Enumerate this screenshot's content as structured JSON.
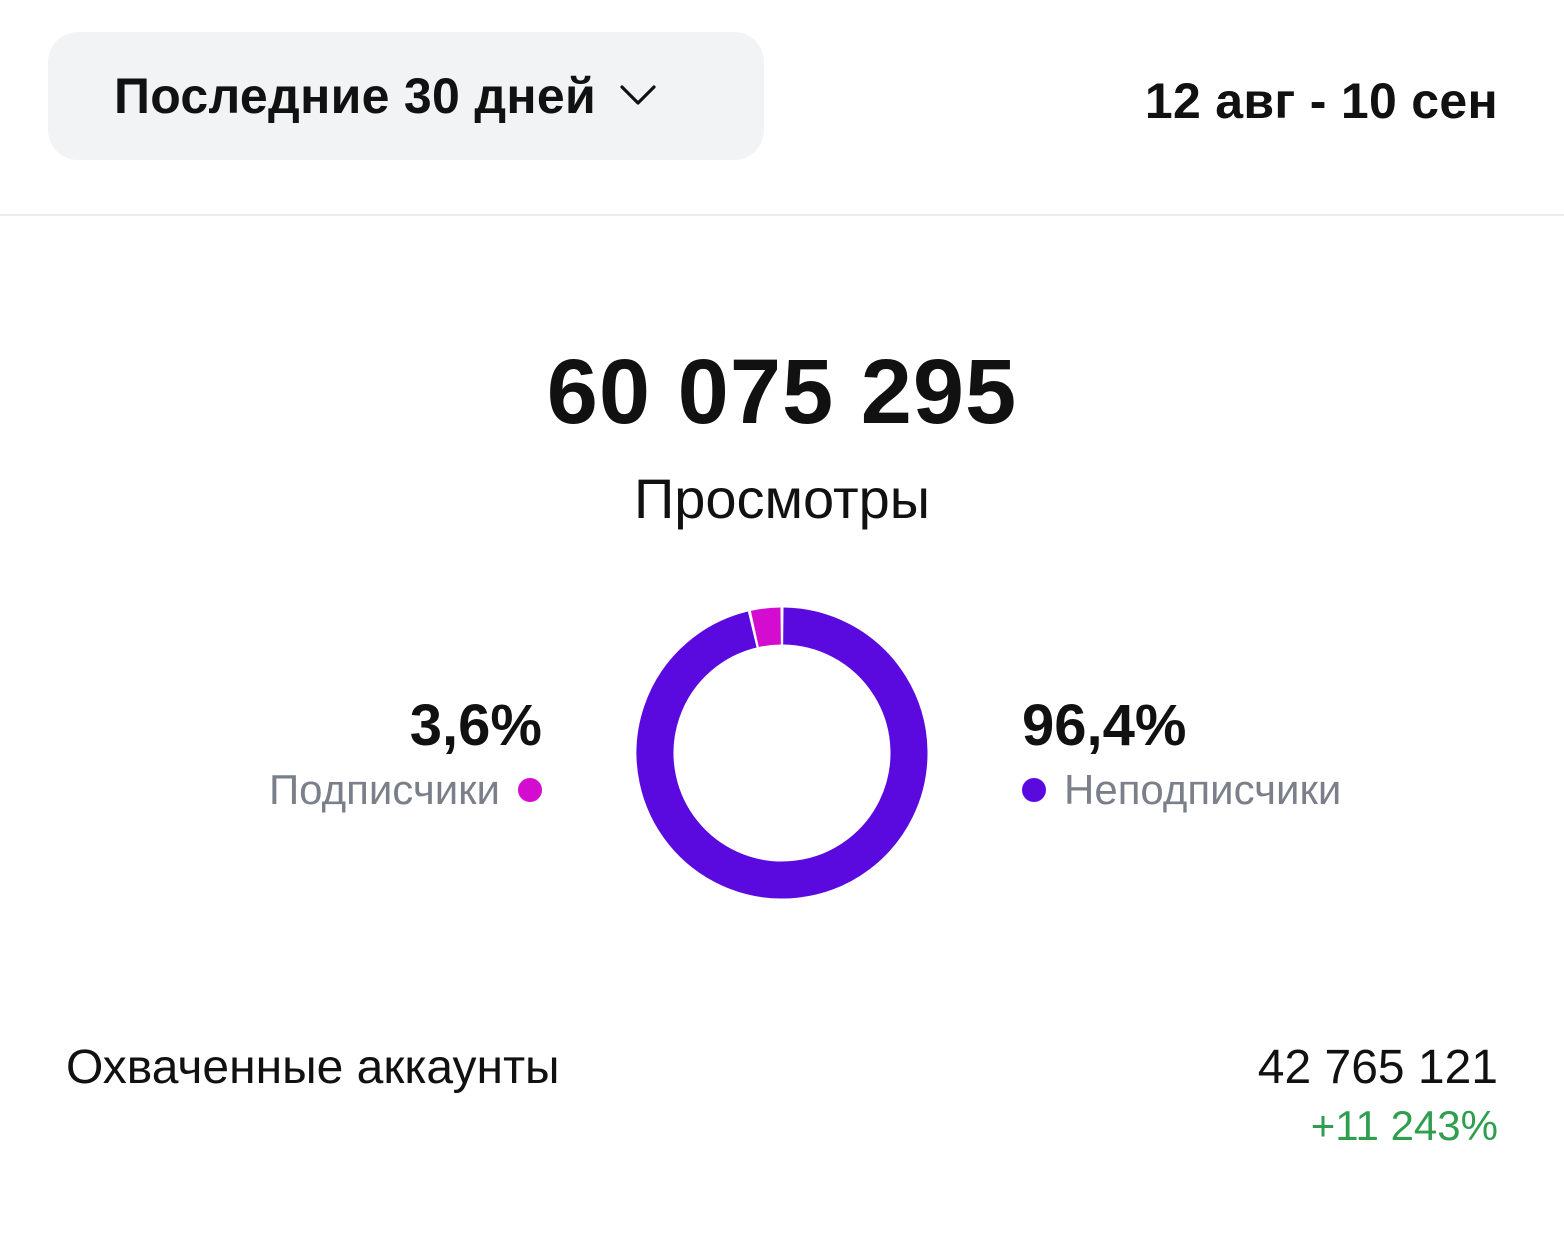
{
  "header": {
    "period_label": "Последние 30 дней",
    "date_range": "12 авг - 10 сен"
  },
  "summary": {
    "total_value": "60 075 295",
    "total_label": "Просмотры"
  },
  "chart_data": {
    "type": "pie",
    "style": "donut",
    "categories": [
      "Подписчики",
      "Неподписчики"
    ],
    "values": [
      3.6,
      96.4
    ],
    "value_labels": [
      "3,6%",
      "96,4%"
    ],
    "colors": [
      "#d30ccf",
      "#5a0adf"
    ],
    "title": "",
    "legend": "left-right"
  },
  "legend": {
    "left": {
      "pct": "3,6%",
      "name": "Подписчики"
    },
    "right": {
      "pct": "96,4%",
      "name": "Неподписчики"
    }
  },
  "reach": {
    "label": "Охваченные аккаунты",
    "value": "42 765 121",
    "change": "+11 243%",
    "change_color": "#2f9e4f"
  }
}
